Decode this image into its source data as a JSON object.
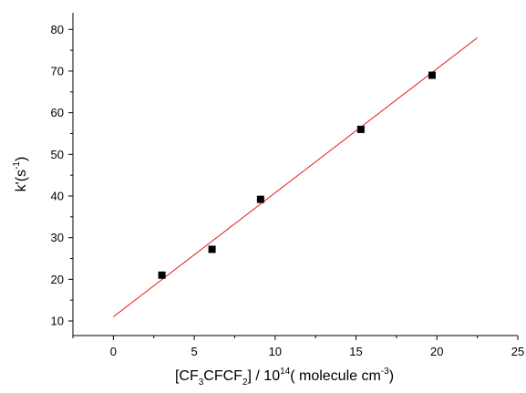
{
  "chart_data": {
    "type": "scatter",
    "xlabel": {
      "parts": [
        "[CF",
        "3",
        "CFCF",
        "2",
        "] / 10",
        "14",
        "( molecule cm",
        "-3",
        ")"
      ]
    },
    "ylabel": {
      "parts": [
        "k'(s",
        "-1",
        ")"
      ]
    },
    "xlim": [
      -2.5,
      25
    ],
    "ylim": [
      6.5,
      84
    ],
    "xticks": [
      0,
      5,
      10,
      15,
      20,
      25
    ],
    "yticks": [
      10,
      20,
      30,
      40,
      50,
      60,
      70,
      80
    ],
    "series": [
      {
        "type": "scatter",
        "marker": "square",
        "color": "#000000",
        "points": [
          {
            "x": 3.0,
            "y": 21.0
          },
          {
            "x": 6.1,
            "y": 27.2
          },
          {
            "x": 9.1,
            "y": 39.2
          },
          {
            "x": 15.3,
            "y": 56.0
          },
          {
            "x": 19.7,
            "y": 69.0
          }
        ]
      },
      {
        "type": "line",
        "color": "#e31a1c",
        "points": [
          {
            "x": 0.0,
            "y": 11.0
          },
          {
            "x": 22.5,
            "y": 78.0
          }
        ]
      }
    ],
    "grid": false,
    "legend": "none"
  }
}
